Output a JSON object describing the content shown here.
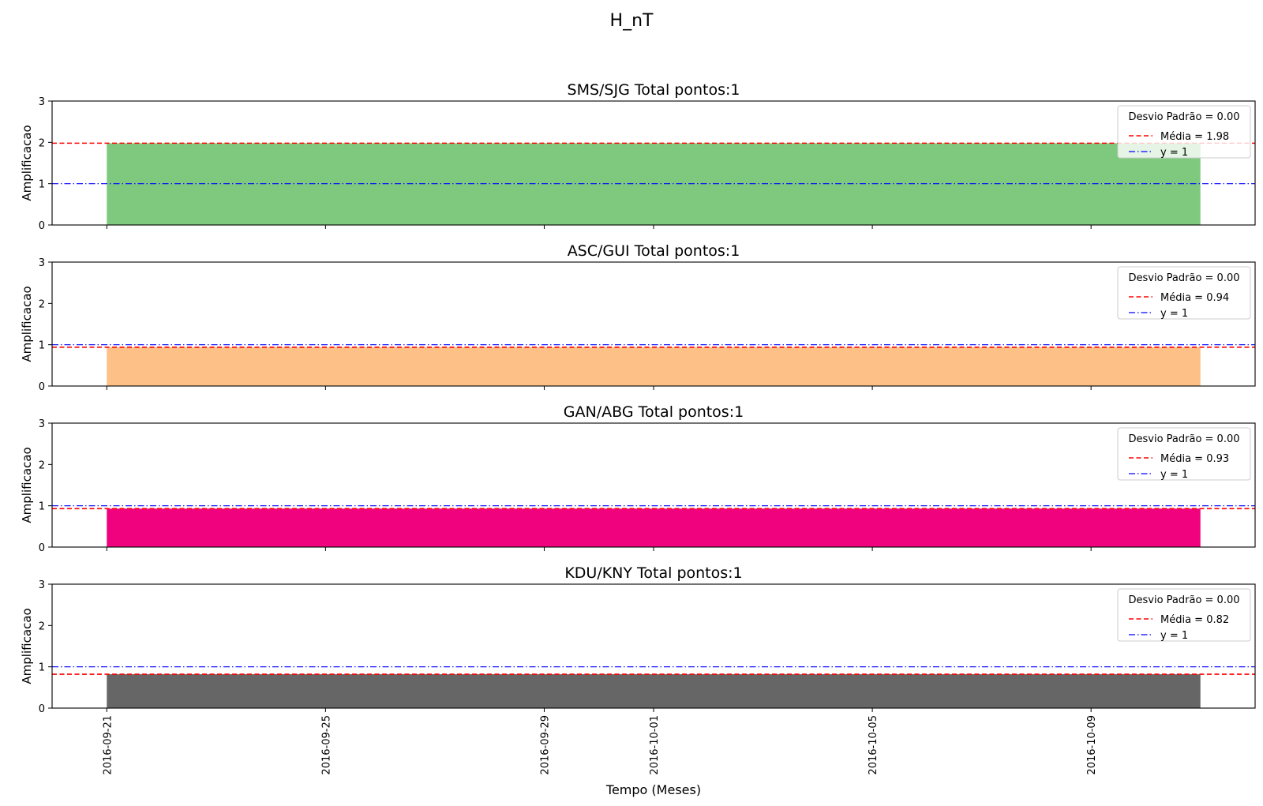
{
  "figure": {
    "suptitle": "H_nT",
    "xlabel": "Tempo (Meses)"
  },
  "chart_data": [
    {
      "type": "bar",
      "title": "SMS/SJG Total pontos:1",
      "ylabel": "Amplificacao",
      "ylim": [
        0,
        3
      ],
      "yticks": [
        "0",
        "1",
        "2",
        "3"
      ],
      "bar": {
        "start": "2016-09-21",
        "end": "2016-10-11",
        "value": 1.98
      },
      "color": "#7fc97f",
      "mean": 1.98,
      "reference": 1,
      "legend": {
        "title": "Desvio Padrão = 0.00",
        "mean_label": "Média = 1.98",
        "ref_label": "y = 1",
        "placement": "upper right"
      }
    },
    {
      "type": "bar",
      "title": "ASC/GUI Total pontos:1",
      "ylabel": "Amplificacao",
      "ylim": [
        0,
        3
      ],
      "yticks": [
        "0",
        "1",
        "2",
        "3"
      ],
      "bar": {
        "start": "2016-09-21",
        "end": "2016-10-11",
        "value": 0.94
      },
      "color": "#fdc086",
      "mean": 0.94,
      "reference": 1,
      "legend": {
        "title": "Desvio Padrão = 0.00",
        "mean_label": "Média = 0.94",
        "ref_label": "y = 1",
        "placement": "upper right"
      }
    },
    {
      "type": "bar",
      "title": "GAN/ABG Total pontos:1",
      "ylabel": "Amplificacao",
      "ylim": [
        0,
        3
      ],
      "yticks": [
        "0",
        "1",
        "2",
        "3"
      ],
      "bar": {
        "start": "2016-09-21",
        "end": "2016-10-11",
        "value": 0.93
      },
      "color": "#f0027f",
      "mean": 0.93,
      "reference": 1,
      "legend": {
        "title": "Desvio Padrão = 0.00",
        "mean_label": "Média = 0.93",
        "ref_label": "y = 1",
        "placement": "upper right"
      }
    },
    {
      "type": "bar",
      "title": "KDU/KNY Total pontos:1",
      "ylabel": "Amplificacao",
      "ylim": [
        0,
        3
      ],
      "yticks": [
        "0",
        "1",
        "2",
        "3"
      ],
      "bar": {
        "start": "2016-09-21",
        "end": "2016-10-11",
        "value": 0.82
      },
      "color": "#666666",
      "mean": 0.82,
      "reference": 1,
      "legend": {
        "title": "Desvio Padrão = 0.00",
        "mean_label": "Média = 0.82",
        "ref_label": "y = 1",
        "placement": "upper right"
      }
    }
  ],
  "x_axis": {
    "type": "date",
    "range": [
      "2016-09-20",
      "2016-10-12"
    ],
    "ticks": [
      "2016-09-21",
      "2016-09-25",
      "2016-09-29",
      "2016-10-01",
      "2016-10-05",
      "2016-10-09"
    ]
  },
  "colors": {
    "mean_line": "#ff0000",
    "reference_line": "#0000ff"
  }
}
